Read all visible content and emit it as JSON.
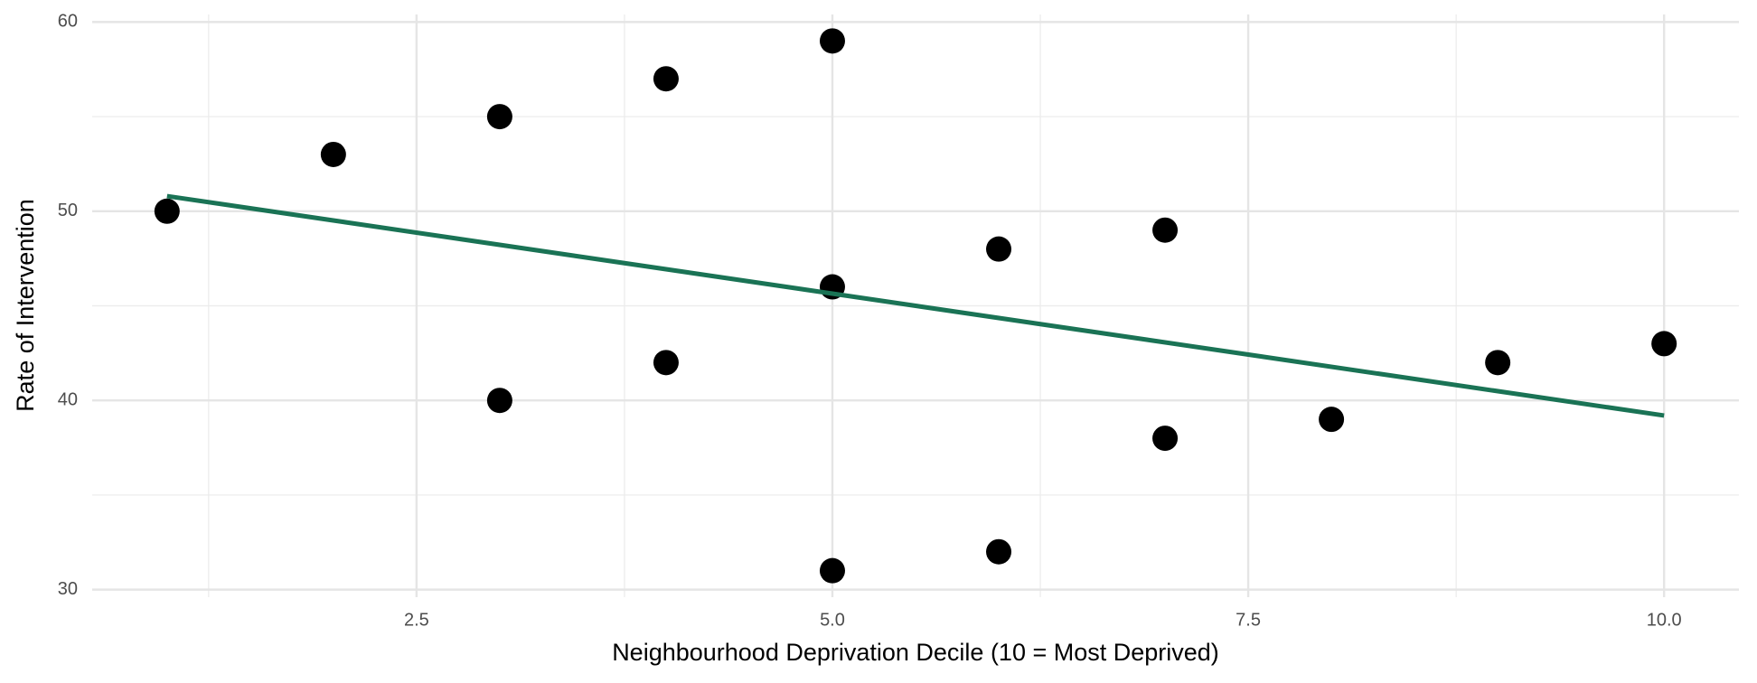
{
  "chart_data": {
    "type": "scatter",
    "xlabel": "Neighbourhood Deprivation Decile (10 = Most Deprived)",
    "ylabel": "Rate of Intervention",
    "x": [
      1,
      2,
      3,
      3,
      4,
      4,
      5,
      5,
      5,
      6,
      6,
      7,
      7,
      8,
      9,
      10
    ],
    "y": [
      50,
      53,
      55,
      40,
      57,
      42,
      59,
      46,
      31,
      48,
      32,
      49,
      38,
      39,
      42,
      43
    ],
    "color": "#000000",
    "trend_line": {
      "x": [
        1,
        10
      ],
      "y": [
        50.8,
        39.2
      ],
      "color": "#1a7355"
    },
    "xlim": [
      0.55,
      10.45
    ],
    "ylim": [
      29.6,
      60.4
    ],
    "xticks": [
      2.5,
      {
        "value": 5,
        "label": "5.0"
      },
      7.5,
      {
        "value": 10,
        "label": "10.0"
      }
    ],
    "yticks": [
      30,
      40,
      50,
      60
    ],
    "x_minor_ticks": [
      1.25,
      3.75,
      6.25,
      8.75
    ],
    "y_minor_ticks": [
      35,
      45,
      55
    ],
    "grid": true
  }
}
